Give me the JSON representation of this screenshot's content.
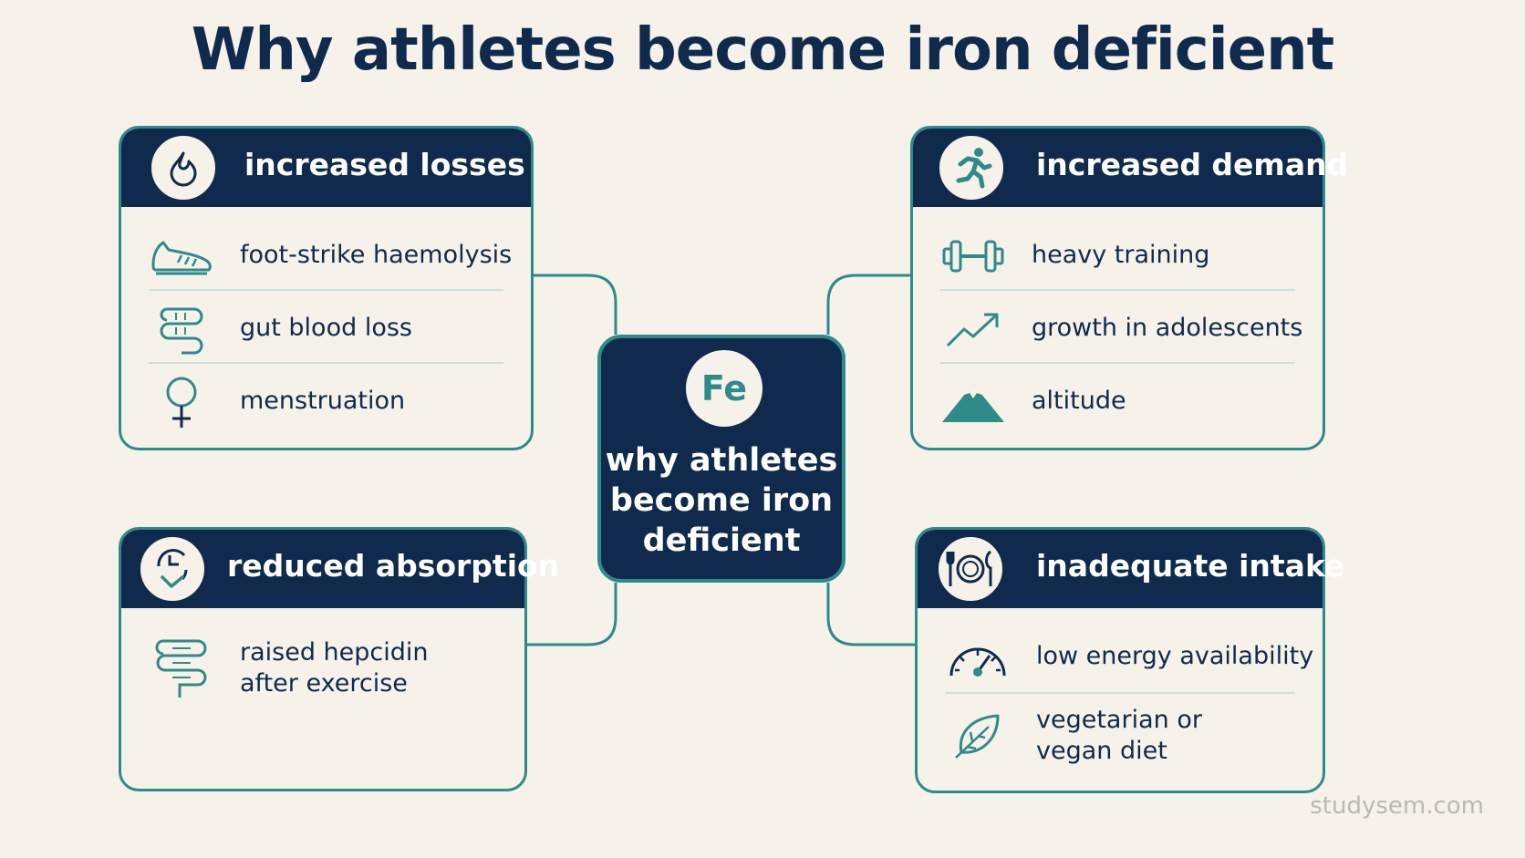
{
  "title": "Why athletes become iron deficient",
  "center": {
    "symbol": "Fe",
    "label": "why athletes become iron deficient"
  },
  "cards": {
    "losses": {
      "title": "increased losses",
      "items": [
        "foot-strike haemolysis",
        "gut blood loss",
        "menstruation"
      ]
    },
    "demand": {
      "title": "increased demand",
      "items": [
        "heavy training",
        "growth in adolescents",
        "altitude"
      ]
    },
    "absorption": {
      "title": "reduced absorption",
      "items": [
        [
          "raised hepcidin",
          "after exercise"
        ]
      ]
    },
    "intake": {
      "title": "inadequate intake",
      "items": [
        "low energy availability",
        [
          "vegetarian or",
          "vegan diet"
        ]
      ]
    }
  },
  "watermark": "studysem.com",
  "colors": {
    "navy": "#0f2a4c",
    "teal": "#2f8a8a",
    "background": "#f6f2ea"
  },
  "icons": {
    "losses": "blood-drop-icon",
    "demand": "runner-icon",
    "absorption": "absorption-cycle-icon",
    "intake": "plate-cutlery-icon"
  }
}
